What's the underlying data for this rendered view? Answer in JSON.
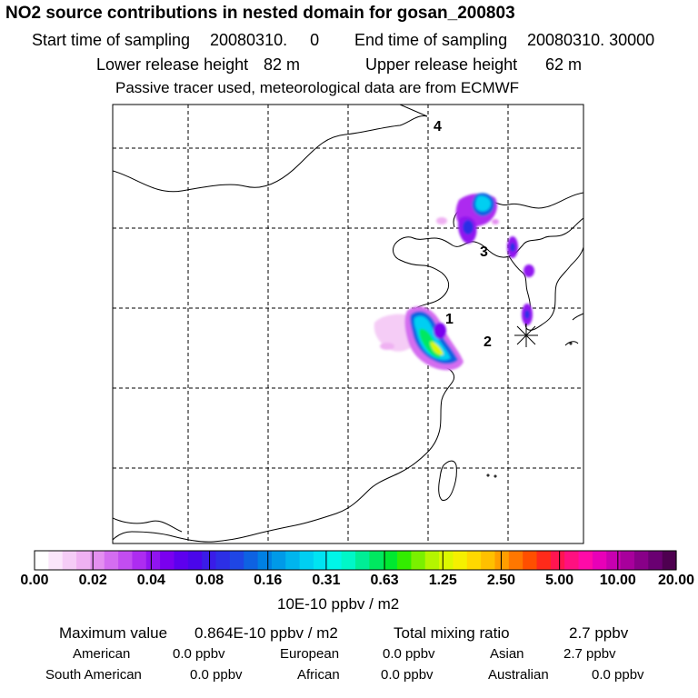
{
  "title": "NO2 source contributions in nested domain for gosan_200803",
  "sampling": {
    "start_label": "Start time of sampling",
    "start_value": "20080310.     0",
    "end_label": "End time of sampling",
    "end_value": "20080310. 30000"
  },
  "release": {
    "lower_label": "Lower release height",
    "lower_value": "82 m",
    "upper_label": "Upper release height",
    "upper_value": "62 m"
  },
  "note": "Passive tracer used, meteorological data are from ECMWF",
  "map": {
    "station_markers": [
      "1",
      "2",
      "3",
      "4"
    ],
    "receptor_icon": "asterisk-star-icon",
    "grid": "dashed"
  },
  "colorbar": {
    "tick_labels": [
      "0.00",
      "0.02",
      "0.04",
      "0.08",
      "0.16",
      "0.31",
      "0.63",
      "1.25",
      "2.50",
      "5.00",
      "10.00",
      "20.00"
    ],
    "colors": [
      "#ffffff",
      "#fbe6fb",
      "#f5ccf6",
      "#efb1f2",
      "#e48ff0",
      "#d46df0",
      "#c24df0",
      "#ad2cf0",
      "#9114f0",
      "#7a00ef",
      "#5d00ee",
      "#4a06ea",
      "#3a1ce8",
      "#2c2fe6",
      "#1f46e5",
      "#0e62e2",
      "#0080e4",
      "#009ae8",
      "#00b5ed",
      "#00cff2",
      "#00e4f2",
      "#00f6e8",
      "#00f7c8",
      "#00ee96",
      "#00e860",
      "#00e830",
      "#33ec00",
      "#7af000",
      "#b4f500",
      "#dcf800",
      "#f5f000",
      "#ffd800",
      "#ffc000",
      "#ff9e00",
      "#ff7700",
      "#ff4f00",
      "#ff2a1a",
      "#ff1550",
      "#ff1080",
      "#ff0aa8",
      "#e800b8",
      "#c800b0",
      "#a8009c",
      "#880088",
      "#6a0072",
      "#4e0050"
    ],
    "unit_label": "10E-10 ppbv / m2"
  },
  "stats": {
    "max_label": "Maximum value",
    "max_value": "0.864E-10 ppbv / m2",
    "total_label": "Total mixing ratio",
    "total_value": "2.7 ppbv"
  },
  "regions": [
    {
      "name": "American",
      "value": "0.0 ppbv"
    },
    {
      "name": "European",
      "value": "0.0 ppbv"
    },
    {
      "name": "Asian",
      "value": "2.7 ppbv"
    },
    {
      "name": "South American",
      "value": "0.0 ppbv"
    },
    {
      "name": "African",
      "value": "0.0 ppbv"
    },
    {
      "name": "Australian",
      "value": "0.0 ppbv"
    }
  ]
}
